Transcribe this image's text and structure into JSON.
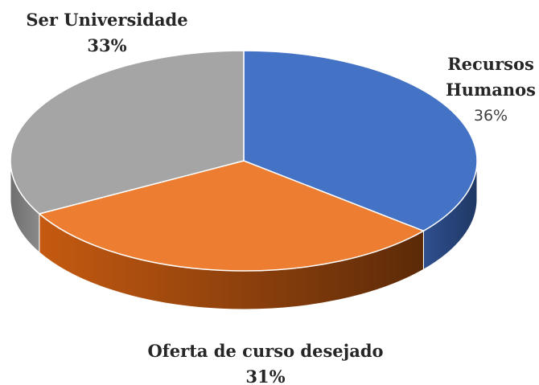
{
  "chart_data": {
    "type": "pie",
    "categories": [
      "Recursos Humanos",
      "Oferta de curso desejado",
      "Ser Universidade"
    ],
    "values": [
      36,
      31,
      33
    ],
    "value_labels": [
      "36%",
      "31%",
      "33%"
    ],
    "colors": [
      "#4472c4",
      "#ed7d31",
      "#a5a5a5"
    ]
  }
}
